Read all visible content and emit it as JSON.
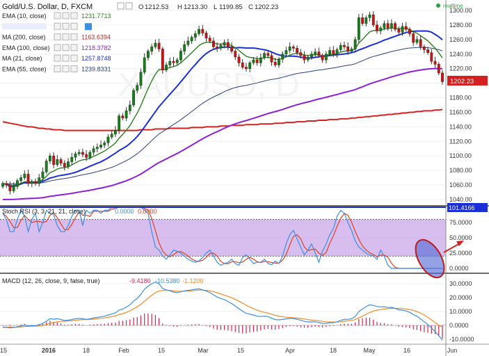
{
  "header": {
    "symbol": "Gold/U.S. Dollar, D, FXCM",
    "open_label": "O",
    "open": "1212.53",
    "high_label": "H",
    "high": "1213.30",
    "low_label": "L",
    "low": "1199.85",
    "close_label": "C",
    "close": "1202.23",
    "realtime_label": "realtime"
  },
  "legend": [
    {
      "label": "EMA (10, close)",
      "value": "1231.7713",
      "color": "#2e7d1e"
    },
    {
      "label": "",
      "value": "",
      "color": "#3b8fe0"
    },
    {
      "label": "MA (200, close)",
      "value": "1163.6394",
      "color": "#d42020"
    },
    {
      "label": "EMA (100, close)",
      "value": "1218.3782",
      "color": "#8e1fd6"
    },
    {
      "label": "MA (21, close)",
      "value": "1257.8748",
      "color": "#1a2fd6"
    },
    {
      "label": "EMA (55, close)",
      "value": "1239.8331",
      "color": "#28407a"
    }
  ],
  "watermark": "XAUUSD, D",
  "price_axis": [
    "1300.00",
    "1280.00",
    "1260.00",
    "1240.00",
    "1220.00",
    "1200.00",
    "1180.00",
    "1160.00",
    "1140.00",
    "1120.00",
    "1100.00",
    "1080.00",
    "1060.00",
    "1040.00"
  ],
  "last_price_tag": "1202.23",
  "stoch": {
    "title": "Stoch RSI (3, 3, 21, 21, close)",
    "k_value": "0.0000",
    "d_value": "0.0000",
    "level_tag": "101.4166",
    "axis": [
      "75.0000",
      "50.0000",
      "25.0000",
      "0.0000"
    ],
    "k_color": "#3b8fe0",
    "d_color": "#e04020",
    "band_color": "#c9a8ea"
  },
  "macd": {
    "title": "MACD (12, 26, close, 9, false, true)",
    "hist_value": "-9.4180",
    "macd_value": "-10.5380",
    "signal_value": "-1.1200",
    "axis": [
      "30.0000",
      "20.0000",
      "10.0000",
      "0.0000",
      "-10.0000"
    ],
    "macd_color": "#3b8fe0",
    "signal_color": "#f08a24",
    "hist_color": "#d62050"
  },
  "time_axis": [
    "15",
    "2016",
    "18",
    "Feb",
    "15",
    "Mar",
    "15",
    "Apr",
    "18",
    "May",
    "16",
    "Jun"
  ],
  "chart_data": [
    {
      "type": "candlestick",
      "title": "Gold/U.S. Dollar, D, FXCM",
      "ylim": [
        1030,
        1310
      ],
      "x": [
        0,
        1,
        2,
        3,
        4,
        5,
        6,
        7,
        8,
        9,
        10,
        11,
        12,
        13,
        14,
        15,
        16,
        17,
        18,
        19,
        20,
        21,
        22,
        23,
        24,
        25,
        26,
        27,
        28,
        29,
        30,
        31,
        32,
        33,
        34,
        35,
        36,
        37,
        38,
        39,
        40,
        41,
        42,
        43,
        44,
        45,
        46,
        47,
        48,
        49,
        50,
        51,
        52,
        53,
        54,
        55,
        56,
        57,
        58,
        59,
        60,
        61,
        62,
        63,
        64,
        65,
        66,
        67,
        68,
        69,
        70,
        71,
        72,
        73,
        74,
        75,
        76,
        77,
        78,
        79,
        80,
        81,
        82,
        83,
        84,
        85,
        86,
        87,
        88,
        89,
        90,
        91,
        92,
        93,
        94,
        95,
        96,
        97,
        98,
        99,
        100,
        101,
        102,
        103,
        104,
        105,
        106,
        107,
        108,
        109,
        110,
        111,
        112,
        113,
        114,
        115,
        116,
        117,
        118,
        119,
        120,
        121
      ],
      "close": [
        1062,
        1060,
        1052,
        1058,
        1066,
        1070,
        1075,
        1062,
        1065,
        1062,
        1070,
        1078,
        1093,
        1100,
        1088,
        1095,
        1090,
        1085,
        1092,
        1098,
        1103,
        1105,
        1102,
        1098,
        1105,
        1110,
        1112,
        1115,
        1118,
        1126,
        1130,
        1135,
        1155,
        1152,
        1162,
        1170,
        1190,
        1197,
        1215,
        1235,
        1244,
        1250,
        1255,
        1247,
        1218,
        1225,
        1230,
        1228,
        1232,
        1244,
        1253,
        1258,
        1263,
        1268,
        1274,
        1269,
        1262,
        1258,
        1250,
        1248,
        1252,
        1256,
        1250,
        1244,
        1236,
        1228,
        1222,
        1220,
        1228,
        1232,
        1228,
        1235,
        1241,
        1238,
        1229,
        1225,
        1233,
        1240,
        1245,
        1250,
        1248,
        1242,
        1238,
        1232,
        1236,
        1240,
        1243,
        1238,
        1232,
        1240,
        1245,
        1240,
        1246,
        1252,
        1250,
        1244,
        1247,
        1260,
        1290,
        1282,
        1290,
        1294,
        1280,
        1272,
        1276,
        1282,
        1276,
        1282,
        1274,
        1270,
        1278,
        1274,
        1268,
        1256,
        1260,
        1250,
        1246,
        1242,
        1230,
        1226,
        1214,
        1202
      ],
      "ma200": [
        1147,
        1146,
        1145,
        1144,
        1143,
        1142,
        1141,
        1140,
        1140,
        1139,
        1138,
        1138,
        1137,
        1137,
        1136,
        1136,
        1136,
        1135,
        1135,
        1135,
        1135,
        1135,
        1135,
        1135,
        1135,
        1135,
        1135,
        1135,
        1135,
        1135,
        1135,
        1135,
        1135,
        1135,
        1135,
        1135,
        1135,
        1135,
        1136,
        1136,
        1136,
        1136,
        1137,
        1137,
        1137,
        1137,
        1138,
        1138,
        1138,
        1138,
        1138,
        1138,
        1139,
        1139,
        1139,
        1139,
        1140,
        1140,
        1140,
        1140,
        1141,
        1141,
        1141,
        1142,
        1142,
        1142,
        1142,
        1143,
        1143,
        1143,
        1143,
        1144,
        1144,
        1144,
        1144,
        1145,
        1145,
        1145,
        1146,
        1146,
        1146,
        1147,
        1147,
        1147,
        1148,
        1148,
        1148,
        1149,
        1149,
        1149,
        1150,
        1150,
        1150,
        1151,
        1151,
        1151,
        1152,
        1152,
        1153,
        1153,
        1154,
        1154,
        1155,
        1155,
        1156,
        1156,
        1157,
        1157,
        1158,
        1158,
        1159,
        1159,
        1160,
        1160,
        1161,
        1161,
        1162,
        1162,
        1162,
        1163,
        1163,
        1164
      ],
      "k_series": [
        90,
        80,
        60,
        60,
        80,
        95,
        85,
        60,
        80,
        90,
        60,
        75,
        95,
        90,
        88,
        70,
        60,
        60,
        70,
        85,
        95,
        95,
        70,
        95,
        90,
        95,
        95,
        90,
        95,
        95,
        100,
        100,
        100,
        100,
        100,
        100,
        100,
        100,
        100,
        95,
        90,
        60,
        35,
        30,
        20,
        15,
        22,
        30,
        28,
        25,
        20,
        15,
        12,
        10,
        12,
        18,
        25,
        30,
        20,
        10,
        5,
        8,
        10,
        15,
        8,
        5,
        18,
        22,
        15,
        8,
        10,
        10,
        15,
        8,
        6,
        12,
        8,
        20,
        40,
        55,
        62,
        48,
        35,
        22,
        30,
        40,
        25,
        10,
        28,
        40,
        55,
        65,
        85,
        95,
        90,
        75,
        62,
        45,
        35,
        30,
        25,
        22,
        20,
        15,
        30,
        20,
        5,
        0,
        0,
        0,
        0,
        0,
        0,
        0,
        0,
        0,
        0,
        0,
        0,
        0,
        0,
        0
      ],
      "macd_line": [
        -1.5,
        -1.4,
        -1.8,
        -1.5,
        -1.0,
        -0.5,
        0.3,
        -0.5,
        -0.2,
        -0.4,
        0.5,
        1.5,
        3.0,
        4.8,
        4.5,
        4.8,
        4.3,
        3.5,
        3.8,
        4.2,
        4.8,
        5.1,
        4.8,
        4.3,
        4.8,
        5.3,
        5.8,
        6.2,
        6.6,
        7.5,
        8.2,
        9.0,
        11.0,
        11.8,
        13.2,
        14.8,
        17.5,
        19.4,
        22.4,
        26.0,
        28.3,
        30.0,
        31.0,
        30.0,
        26.5,
        25.6,
        24.9,
        24.0,
        23.6,
        24.2,
        24.8,
        25.2,
        25.6,
        26.0,
        26.3,
        25.6,
        24.7,
        23.6,
        22.0,
        20.4,
        19.3,
        18.6,
        17.2,
        15.7,
        13.9,
        12.0,
        10.2,
        8.7,
        8.1,
        7.5,
        6.6,
        6.4,
        6.6,
        6.3,
        5.2,
        4.2,
        4.0,
        4.3,
        4.7,
        5.1,
        5.0,
        4.4,
        3.7,
        2.9,
        2.5,
        2.5,
        2.6,
        2.1,
        1.4,
        1.5,
        1.9,
        2.0,
        2.6,
        3.6,
        4.3,
        4.4,
        4.8,
        6.3,
        10.0,
        11.8,
        13.5,
        14.8,
        14.4,
        13.6,
        13.3,
        13.4,
        12.9,
        13.0,
        12.2,
        11.2,
        11.0,
        10.4,
        9.4,
        7.8,
        6.6,
        4.6,
        2.6,
        0.6,
        -2.0,
        -4.4,
        -7.4,
        -10.5
      ],
      "signal_line": [
        -1.2,
        -1.2,
        -1.3,
        -1.3,
        -1.3,
        -1.1,
        -0.8,
        -0.7,
        -0.6,
        -0.6,
        -0.4,
        0.0,
        0.6,
        1.4,
        2.0,
        2.6,
        2.9,
        3.0,
        3.2,
        3.4,
        3.7,
        4.0,
        4.2,
        4.2,
        4.3,
        4.5,
        4.8,
        5.1,
        5.4,
        5.8,
        6.3,
        6.9,
        7.7,
        8.5,
        9.4,
        10.5,
        11.9,
        13.4,
        15.2,
        17.4,
        19.6,
        21.7,
        23.5,
        24.8,
        25.1,
        25.2,
        25.2,
        24.9,
        24.6,
        24.5,
        24.6,
        24.7,
        24.9,
        25.1,
        25.4,
        25.4,
        25.2,
        24.9,
        24.3,
        23.5,
        22.6,
        21.8,
        20.9,
        19.9,
        18.7,
        17.4,
        16.0,
        14.5,
        13.2,
        12.1,
        11.0,
        10.1,
        9.4,
        8.8,
        8.1,
        7.3,
        6.6,
        6.2,
        5.9,
        5.7,
        5.5,
        5.3,
        5.0,
        4.6,
        4.2,
        3.8,
        3.6,
        3.3,
        2.9,
        2.6,
        2.5,
        2.4,
        2.4,
        2.6,
        3.0,
        3.3,
        3.6,
        4.2,
        5.4,
        6.7,
        8.0,
        9.3,
        10.3,
        11.0,
        11.4,
        11.8,
        12.1,
        12.2,
        12.3,
        12.2,
        12.1,
        11.9,
        11.4,
        10.7,
        9.9,
        8.8,
        7.5,
        5.9,
        4.0,
        2.0,
        0.1,
        -1.1
      ]
    }
  ]
}
